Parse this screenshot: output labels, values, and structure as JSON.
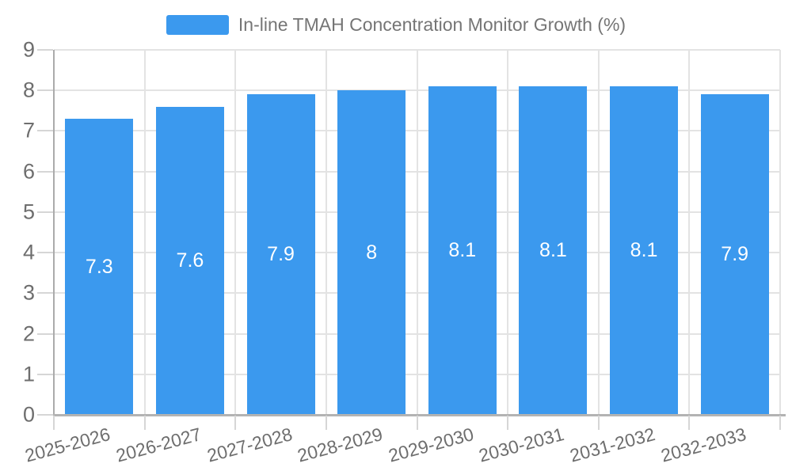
{
  "legend": {
    "label": "In-line TMAH Concentration Monitor Growth (%)"
  },
  "colors": {
    "bar": "#3b99ee",
    "grid": "#e3e3e3",
    "axis": "#ababab",
    "tick": "#d6d6d6",
    "axis_text": "#6e6e6e",
    "bar_label_text": "#ffffff",
    "legend_text": "#757575"
  },
  "chart_data": {
    "type": "bar",
    "title": "In-line TMAH Concentration Monitor Growth (%)",
    "categories": [
      "2025-2026",
      "2026-2027",
      "2027-2028",
      "2028-2029",
      "2029-2030",
      "2030-2031",
      "2031-2032",
      "2032-2033"
    ],
    "values": [
      7.3,
      7.6,
      7.9,
      8,
      8.1,
      8.1,
      8.1,
      7.9
    ],
    "bar_labels": [
      "7.3",
      "7.6",
      "7.9",
      "8",
      "8.1",
      "8.1",
      "8.1",
      "7.9"
    ],
    "xlabel": "",
    "ylabel": "",
    "ylim": [
      0,
      9
    ],
    "ytick_step": 1,
    "grid": true,
    "legend_position": "top"
  }
}
